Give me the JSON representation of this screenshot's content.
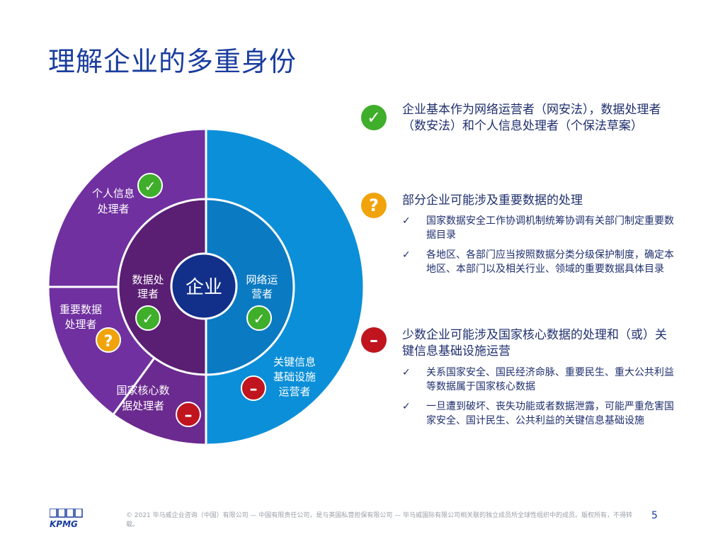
{
  "title": "理解企业的多重身份",
  "diagram": {
    "center": "企业",
    "inner_left_lines": [
      "数据处",
      "理者"
    ],
    "inner_right_lines": [
      "网络运",
      "营者"
    ],
    "outer_left": [
      {
        "lines": [
          "个人信息",
          "处理者"
        ],
        "badge": "check"
      },
      {
        "lines": [
          "重要数据",
          "处理者"
        ],
        "badge": "question"
      },
      {
        "lines": [
          "国家核心数",
          "据处理者"
        ],
        "badge": "minus"
      }
    ],
    "outer_right": {
      "lines": [
        "关键信息",
        "基础设施",
        "运营者"
      ],
      "badge": "minus"
    },
    "colors": {
      "outer_left": "#7030a0",
      "outer_left_bottom": "#6b2a8f",
      "inner_left": "#5a1e73",
      "outer_right": "#0b8fd8",
      "inner_right": "#0a7ac2",
      "center": "#12308a"
    },
    "badge_glyphs": {
      "check": "✓",
      "question": "?",
      "minus": "–"
    }
  },
  "right_panel": [
    {
      "badge": "check",
      "badge_glyph": "✓",
      "text": "企业基本作为网络运营者（网安法），数据处理者（数安法）和个人信息处理者（个保法草案）"
    },
    {
      "badge": "question",
      "badge_glyph": "?",
      "text": "部分企业可能涉及重要数据的处理",
      "items": [
        "国家数据安全工作协调机制统筹协调有关部门制定重要数据目录",
        "各地区、各部门应当按照数据分类分级保护制度，确定本地区、本部门以及相关行业、领域的重要数据具体目录"
      ]
    },
    {
      "badge": "minus",
      "badge_glyph": "–",
      "text": "少数企业可能涉及国家核心数据的处理和（或）关键信息基础设施运营",
      "items": [
        "关系国家安全、国民经济命脉、重要民生、重大公共利益等数据属于国家核心数据",
        "一旦遭到破坏、丧失功能或者数据泄露，可能严重危害国家安全、国计民生、公共利益的关键信息基础设施"
      ]
    }
  ],
  "check_mark": "✓",
  "footer": {
    "logo": "KPMG",
    "text": "© 2021 毕马威企业咨询（中国）有限公司 — 中国有限责任公司，是与英国私营担保有限公司 — 毕马威国际有限公司相关联的独立成员所全球性组织中的成员。版权所有，不得转载。",
    "page": "5"
  }
}
